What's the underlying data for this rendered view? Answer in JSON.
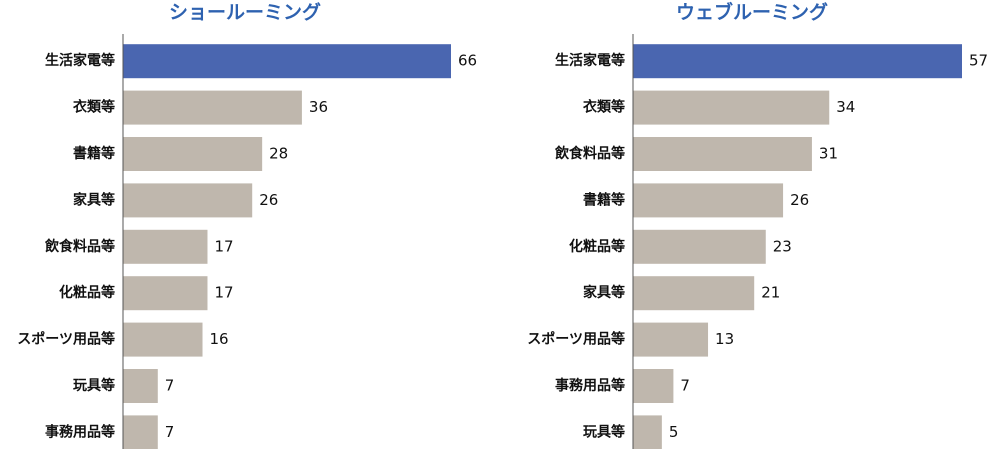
{
  "chart_data": [
    {
      "type": "bar",
      "orientation": "horizontal",
      "title": "ショールーミング",
      "categories": [
        "生活家電等",
        "衣類等",
        "書籍等",
        "家具等",
        "飲食料品等",
        "化粧品等",
        "スポーツ用品等",
        "玩具等",
        "事務用品等"
      ],
      "values": [
        66,
        36,
        28,
        26,
        17,
        17,
        16,
        7,
        7
      ],
      "colors": [
        "#4a66b0",
        "#bfb7ad",
        "#bfb7ad",
        "#bfb7ad",
        "#bfb7ad",
        "#bfb7ad",
        "#bfb7ad",
        "#bfb7ad",
        "#bfb7ad"
      ]
    },
    {
      "type": "bar",
      "orientation": "horizontal",
      "title": "ウェブルーミング",
      "categories": [
        "生活家電等",
        "衣類等",
        "飲食料品等",
        "書籍等",
        "化粧品等",
        "家具等",
        "スポーツ用品等",
        "事務用品等",
        "玩具等"
      ],
      "values": [
        57,
        34,
        31,
        26,
        23,
        21,
        13,
        7,
        5
      ],
      "colors": [
        "#4a66b0",
        "#bfb7ad",
        "#bfb7ad",
        "#bfb7ad",
        "#bfb7ad",
        "#bfb7ad",
        "#bfb7ad",
        "#bfb7ad",
        "#bfb7ad"
      ]
    }
  ]
}
